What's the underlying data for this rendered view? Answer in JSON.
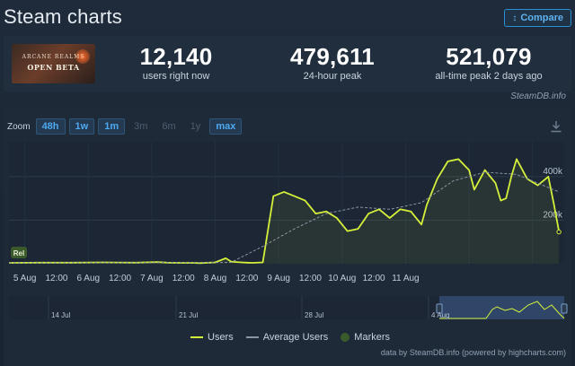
{
  "header": {
    "title": "Steam charts",
    "compare_label": "Compare",
    "compare_icon": "sort-numbers-icon"
  },
  "game": {
    "thumb_small": "ARCANE REALMS",
    "thumb_big": "OPEN BETA"
  },
  "stats": {
    "now_value": "12,140",
    "now_label": "users right now",
    "peak24_value": "479,611",
    "peak24_label": "24-hour peak",
    "alltime_value": "521,079",
    "alltime_label": "all-time peak 2 days ago"
  },
  "steamdb_link": "SteamDB.info",
  "zoom": {
    "label": "Zoom",
    "buttons": [
      {
        "label": "48h",
        "active": true
      },
      {
        "label": "1w",
        "active": true
      },
      {
        "label": "1m",
        "active": true
      },
      {
        "label": "3m",
        "active": false
      },
      {
        "label": "6m",
        "active": false
      },
      {
        "label": "1y",
        "active": false
      },
      {
        "label": "max",
        "active": true
      }
    ]
  },
  "chart_data": {
    "type": "line",
    "x_tick_labels": [
      "5 Aug",
      "12:00",
      "6 Aug",
      "12:00",
      "7 Aug",
      "12:00",
      "8 Aug",
      "12:00",
      "9 Aug",
      "12:00",
      "10 Aug",
      "12:00",
      "11 Aug"
    ],
    "y_tick_labels": [
      "200k",
      "400k"
    ],
    "ylim": [
      0,
      560000
    ],
    "marker_label": "Rel",
    "series": [
      {
        "name": "Users",
        "color": "#d5f03b",
        "x_hours": [
          0,
          12,
          24,
          36,
          48,
          56,
          60,
          66,
          70,
          72,
          78,
          82,
          84,
          86,
          88,
          90,
          92,
          96,
          100,
          104,
          108,
          112,
          116,
          120,
          124,
          128,
          132,
          136,
          140,
          144,
          148,
          152,
          156,
          158,
          162,
          166,
          170,
          174,
          176,
          180,
          184,
          186,
          188,
          190,
          192,
          196,
          200,
          204,
          206,
          208
        ],
        "values": [
          4000,
          5000,
          5000,
          6000,
          5000,
          8000,
          5000,
          4000,
          4000,
          3000,
          6000,
          25000,
          10000,
          8000,
          6000,
          5000,
          4000,
          6000,
          310000,
          330000,
          310000,
          290000,
          230000,
          240000,
          210000,
          150000,
          160000,
          230000,
          250000,
          210000,
          250000,
          240000,
          180000,
          270000,
          390000,
          470000,
          480000,
          430000,
          340000,
          430000,
          370000,
          290000,
          300000,
          400000,
          480000,
          390000,
          360000,
          400000,
          280000,
          150000
        ]
      },
      {
        "name": "Average Users",
        "color": "#8a96a4",
        "x_hours": [
          0,
          60,
          72,
          84,
          96,
          108,
          120,
          132,
          144,
          156,
          168,
          180,
          192,
          208
        ],
        "values": [
          4000,
          5000,
          5000,
          6000,
          80000,
          160000,
          230000,
          260000,
          250000,
          280000,
          380000,
          420000,
          410000,
          330000
        ]
      }
    ],
    "navigator_labels": [
      "14 Jul",
      "21 Jul",
      "28 Jul",
      "4 Aug"
    ]
  },
  "legend": {
    "users": "Users",
    "average": "Average Users",
    "markers": "Markers"
  },
  "credits": "data by SteamDB.info (powered by highcharts.com)"
}
